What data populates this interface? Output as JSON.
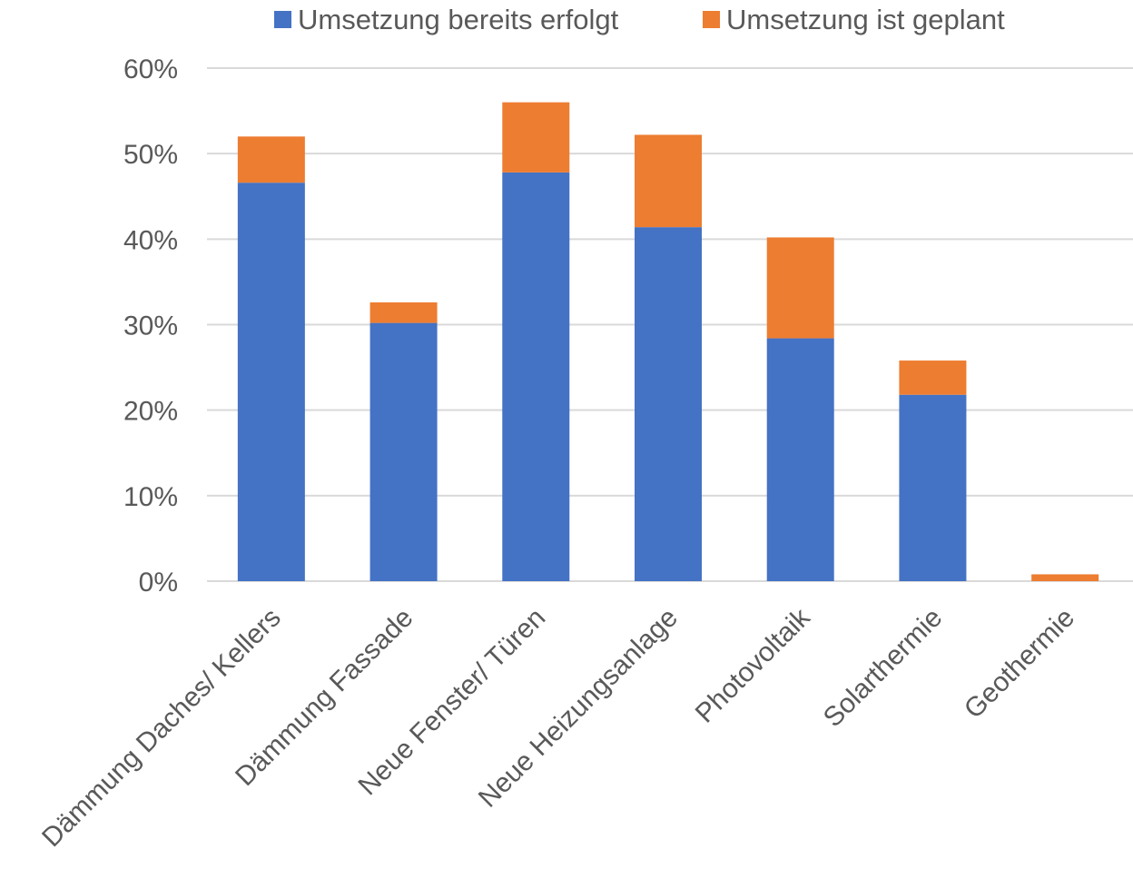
{
  "chart_data": {
    "type": "bar",
    "stacked": true,
    "title": "",
    "xlabel": "",
    "ylabel": "",
    "ylim": [
      0,
      0.6
    ],
    "y_ticks": [
      0,
      0.1,
      0.2,
      0.3,
      0.4,
      0.5,
      0.6
    ],
    "y_tick_labels": [
      "0%",
      "10%",
      "20%",
      "30%",
      "40%",
      "50%",
      "60%"
    ],
    "grid": true,
    "legend_position": "top",
    "categories": [
      "Dämmung Daches/ Kellers",
      "Dämmung Fassade",
      "Neue Fenster/ Türen",
      "Neue Heizungsanlage",
      "Photovoltaik",
      "Solarthermie",
      "Geothermie"
    ],
    "series": [
      {
        "name": "Umsetzung bereits erfolgt",
        "color": "#4472c4",
        "values": [
          0.466,
          0.302,
          0.478,
          0.414,
          0.284,
          0.218,
          0.0
        ]
      },
      {
        "name": "Umsetzung ist geplant",
        "color": "#ed7d31",
        "values": [
          0.054,
          0.024,
          0.082,
          0.108,
          0.118,
          0.04,
          0.008
        ]
      }
    ]
  }
}
